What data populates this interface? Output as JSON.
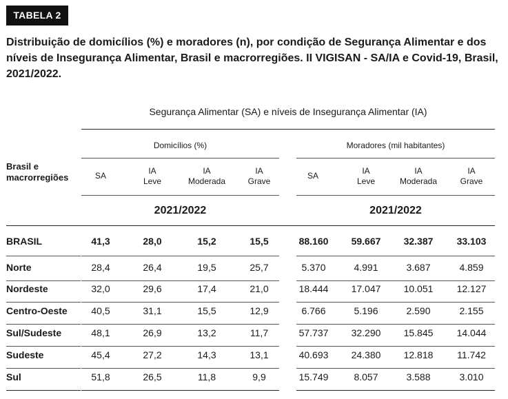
{
  "badge": "TABELA 2",
  "title": "Distribuição de domicílios (%) e moradores (n), por condição de Segurança Alimentar e dos níveis de Insegurança Alimentar, Brasil e macrorregiões. II VIGISAN - SA/IA e Covid-19, Brasil, 2021/2022.",
  "table": {
    "supertitle": "Segurança Alimentar (SA) e níveis de Insegurança Alimentar (IA)",
    "row_header": [
      "Brasil e",
      "macrorregiões"
    ],
    "group_domicilios": "Domicílios (%)",
    "group_moradores": "Moradores (mil habitantes)",
    "columns": [
      {
        "l1": "SA",
        "l2": ""
      },
      {
        "l1": "IA",
        "l2": "Leve"
      },
      {
        "l1": "IA",
        "l2": "Moderada"
      },
      {
        "l1": "IA",
        "l2": "Grave"
      }
    ],
    "year": "2021/2022",
    "rows": [
      {
        "label": "BRASIL",
        "values": [
          "41,3",
          "28,0",
          "15,2",
          "15,5",
          "88.160",
          "59.667",
          "32.387",
          "33.103"
        ]
      },
      {
        "label": "Norte",
        "values": [
          "28,4",
          "26,4",
          "19,5",
          "25,7",
          "5.370",
          "4.991",
          "3.687",
          "4.859"
        ]
      },
      {
        "label": "Nordeste",
        "values": [
          "32,0",
          "29,6",
          "17,4",
          "21,0",
          "18.444",
          "17.047",
          "10.051",
          "12.127"
        ]
      },
      {
        "label": "Centro-Oeste",
        "values": [
          "40,5",
          "31,1",
          "15,5",
          "12,9",
          "6.766",
          "5.196",
          "2.590",
          "2.155"
        ]
      },
      {
        "label": "Sul/Sudeste",
        "values": [
          "48,1",
          "26,9",
          "13,2",
          "11,7",
          "57.737",
          "32.290",
          "15.845",
          "14.044"
        ]
      },
      {
        "label": "Sudeste",
        "values": [
          "45,4",
          "27,2",
          "14,3",
          "13,1",
          "40.693",
          "24.380",
          "12.818",
          "11.742"
        ]
      },
      {
        "label": "Sul",
        "values": [
          "51,8",
          "26,5",
          "11,8",
          "9,9",
          "15.749",
          "8.057",
          "3.588",
          "3.010"
        ]
      }
    ]
  }
}
